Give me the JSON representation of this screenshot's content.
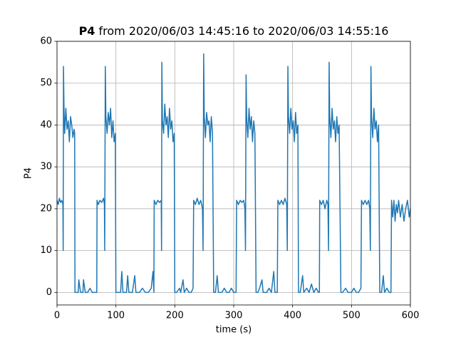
{
  "chart_data": {
    "type": "line",
    "title_bold": "P4",
    "title": "from 2020/06/03 14:45:16 to 2020/06/03 14:55:16",
    "xlabel": "time (s)",
    "ylabel": "P4",
    "xlim": [
      0,
      600
    ],
    "ylim": [
      -3,
      60
    ],
    "xticks": [
      0,
      100,
      200,
      300,
      400,
      500,
      600
    ],
    "yticks": [
      0,
      10,
      20,
      30,
      40,
      50,
      60
    ],
    "grid": true,
    "series": [
      {
        "name": "P4",
        "color": "#1f77b4",
        "x": [
          0,
          2,
          4,
          6,
          8,
          10,
          10.5,
          11,
          12,
          13,
          15,
          17,
          19,
          21,
          23,
          25,
          27,
          29,
          30,
          30.5,
          33,
          36,
          37,
          40,
          44,
          45,
          48,
          52,
          56,
          60,
          64,
          67.5,
          68,
          70,
          73,
          76,
          79,
          80.5,
          81,
          82,
          83,
          85,
          87,
          89,
          91,
          93,
          95,
          97,
          99,
          100,
          103,
          108,
          110,
          112,
          118,
          120,
          122,
          128,
          132,
          134,
          140,
          145,
          150,
          155,
          160,
          163,
          164.5,
          165,
          168,
          171,
          174,
          177,
          177.5,
          178,
          179,
          181,
          183,
          185,
          187,
          189,
          191,
          193,
          195,
          197,
          199,
          200,
          203,
          208,
          210,
          214,
          216,
          220,
          224,
          228,
          231,
          232,
          235,
          238,
          241,
          244,
          247,
          248,
          249,
          250,
          252,
          254,
          256,
          258,
          260,
          262,
          264,
          266,
          269,
          272,
          274,
          280,
          284,
          288,
          292,
          296,
          300,
          304,
          305,
          308,
          311,
          314,
          317,
          319,
          320,
          321,
          322,
          324,
          326,
          328,
          330,
          332,
          334,
          336,
          338,
          341,
          344,
          348,
          350,
          356,
          360,
          364,
          368,
          370,
          374,
          375,
          378,
          381,
          384,
          387,
          390,
          391,
          392,
          393,
          395,
          397,
          399,
          401,
          403,
          405,
          407,
          409,
          410,
          413,
          417,
          419,
          424,
          428,
          432,
          436,
          440,
          444,
          445.5,
          446,
          449,
          452,
          455,
          458,
          460,
          461,
          462,
          463,
          465,
          467,
          469,
          471,
          473,
          475,
          477,
          479,
          482,
          485,
          490,
          494,
          500,
          504,
          508,
          512,
          516,
          517,
          520,
          523,
          526,
          529,
          531,
          532,
          533,
          534,
          536,
          538,
          540,
          542,
          544,
          546,
          548,
          551,
          554,
          556,
          560,
          564,
          567,
          568,
          570,
          572,
          574,
          576,
          578,
          580,
          583,
          586,
          589,
          592,
          595,
          598,
          600
        ],
        "values": [
          22,
          21,
          22.5,
          21.5,
          22,
          21,
          10,
          54,
          43,
          38,
          44,
          39,
          41,
          36,
          42,
          40,
          37,
          39,
          38,
          0,
          0,
          0,
          3,
          0,
          0,
          3,
          0,
          0,
          1,
          0,
          0,
          0,
          22,
          21,
          22,
          21.5,
          22.5,
          21,
          10,
          54,
          42,
          38,
          43,
          40,
          44,
          37,
          41,
          36,
          38,
          0,
          0,
          0,
          5,
          0,
          0,
          4,
          0,
          0,
          4,
          0,
          0,
          1,
          0,
          0,
          1,
          5,
          0,
          22,
          21,
          22,
          21.5,
          22,
          10,
          55,
          41,
          38,
          45,
          40,
          42,
          37,
          44,
          39,
          41,
          36,
          38,
          0,
          0,
          1,
          0,
          3,
          0,
          1,
          0,
          0,
          1,
          22,
          21,
          22.5,
          21,
          22,
          20,
          10,
          57,
          42,
          37,
          43,
          40,
          41,
          36,
          42,
          38,
          0,
          0,
          4,
          0,
          0,
          1,
          0,
          0,
          1,
          0,
          0,
          22,
          21,
          22,
          21.5,
          22,
          20,
          10,
          52,
          42,
          37,
          44,
          39,
          42,
          36,
          41,
          38,
          0,
          0,
          1,
          3,
          0,
          0,
          1,
          0,
          5,
          0,
          0,
          22,
          21,
          22,
          21,
          22.5,
          21,
          10,
          54,
          42,
          38,
          44,
          39,
          41,
          36,
          43,
          38,
          40,
          0,
          0,
          4,
          0,
          1,
          0,
          2,
          0,
          1,
          0,
          0,
          22,
          21,
          22,
          20,
          22,
          21,
          10,
          55,
          42,
          37,
          44,
          39,
          41,
          36,
          42,
          38,
          40,
          0,
          0,
          1,
          0,
          0,
          1,
          0,
          0,
          1,
          22,
          21,
          22,
          21,
          22,
          20,
          10,
          54,
          42,
          37,
          44,
          39,
          41,
          36,
          40,
          0,
          0,
          4,
          0,
          1,
          0,
          0,
          22,
          18,
          22,
          17,
          21,
          19,
          22,
          18,
          21,
          17,
          20,
          22,
          18,
          20
        ]
      }
    ]
  }
}
